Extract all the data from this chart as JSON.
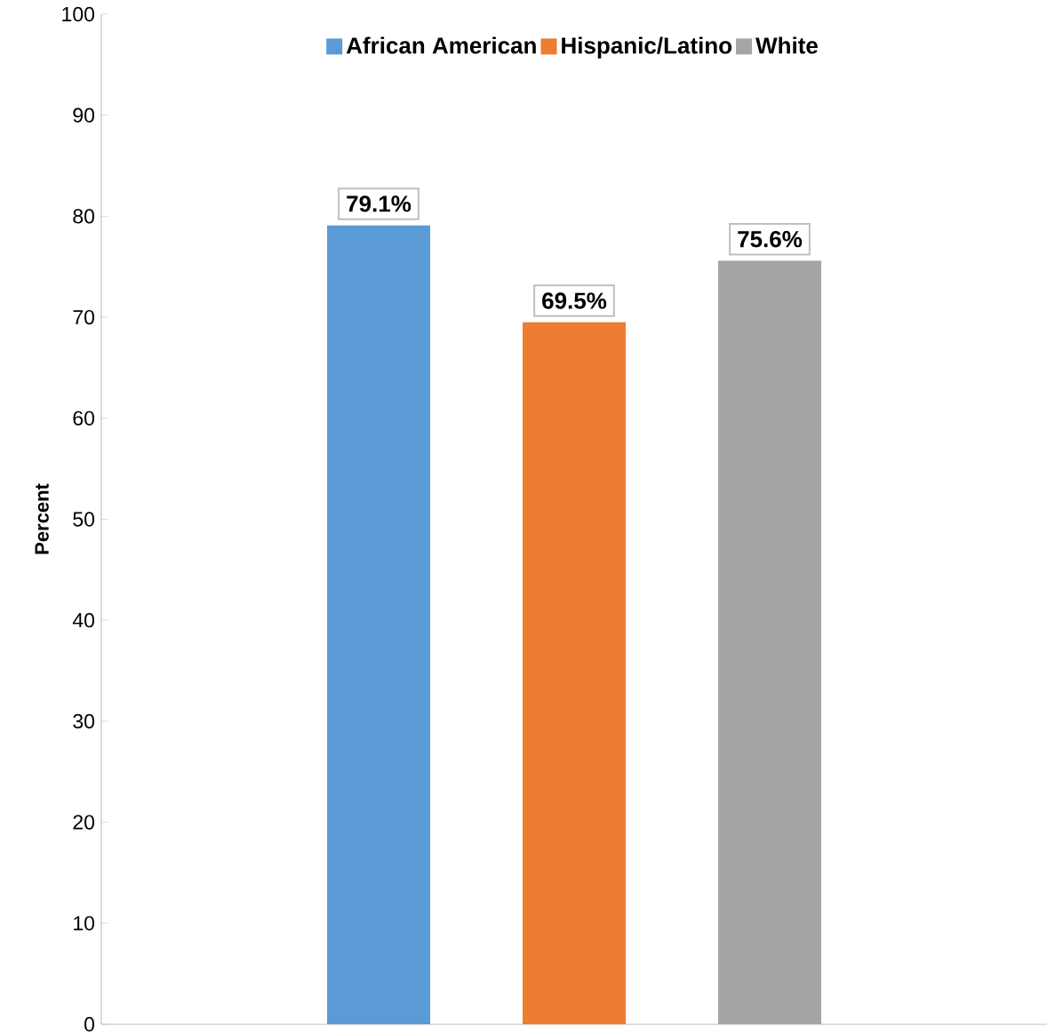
{
  "chart_data": {
    "type": "bar",
    "ylabel": "Percent",
    "categories": [
      null
    ],
    "series": [
      {
        "name": "African American",
        "color": "#5b9bd5",
        "values": [
          79.1
        ],
        "value_labels": [
          "79.1%"
        ]
      },
      {
        "name": "Hispanic/Latino",
        "color": "#ed7d31",
        "values": [
          69.5
        ],
        "value_labels": [
          "69.5%"
        ]
      },
      {
        "name": "White",
        "color": "#a5a5a5",
        "values": [
          75.6
        ],
        "value_labels": [
          "75.6%"
        ]
      }
    ],
    "ylim": [
      0,
      100
    ],
    "yticks": [
      0,
      10,
      20,
      30,
      40,
      50,
      60,
      70,
      80,
      90,
      100
    ],
    "legend": "top",
    "grid": false
  }
}
